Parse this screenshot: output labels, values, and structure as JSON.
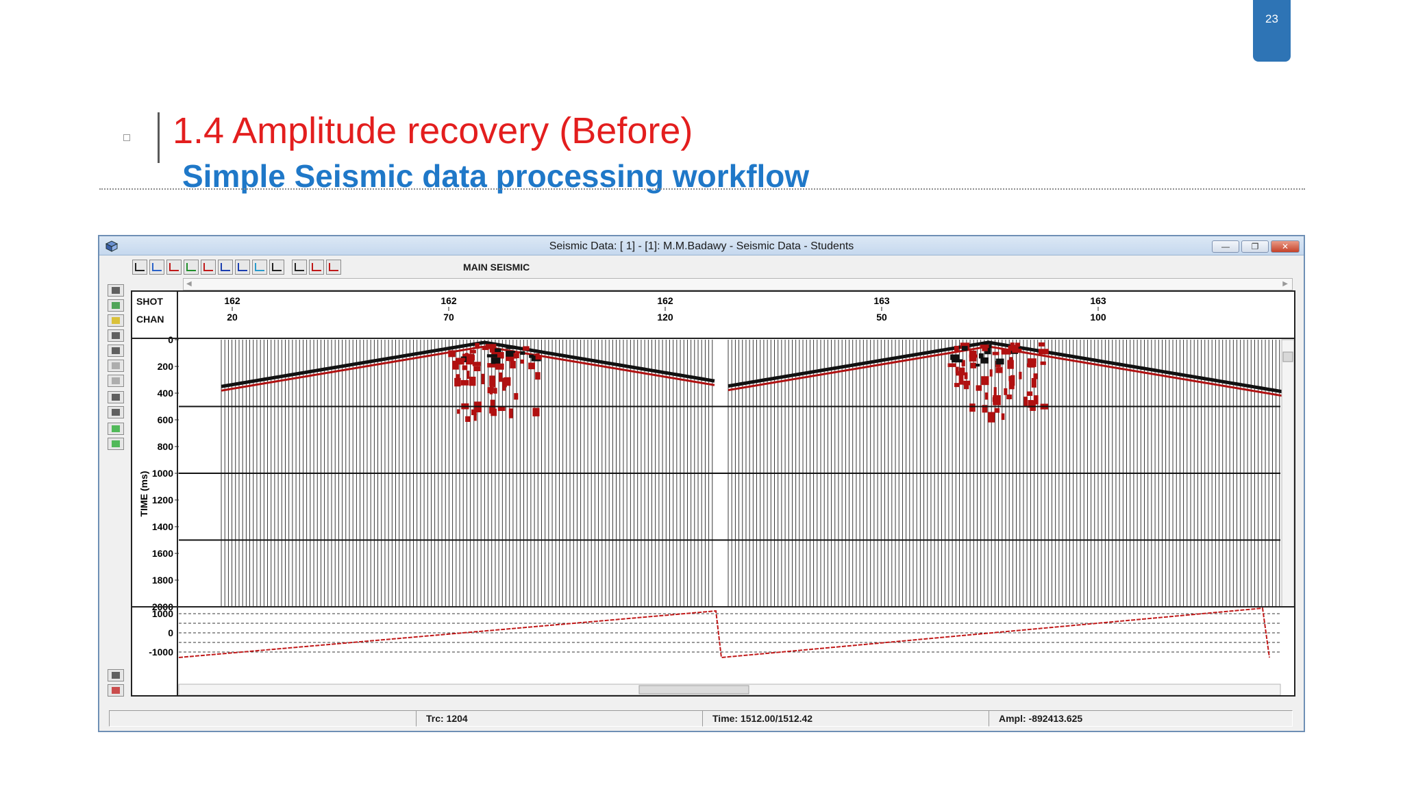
{
  "slide": {
    "page_number": "23",
    "title": "1.4 Amplitude recovery  (Before)",
    "subtitle": "Simple Seismic data processing workflow"
  },
  "window": {
    "title": "Seismic Data: [  1] - [1]: M.M.Badawy - Seismic Data - Students",
    "buttons": [
      "minimize",
      "restore",
      "close"
    ]
  },
  "toolbar": {
    "label": "MAIN SEISMIC",
    "icons": [
      "wiggle-icon",
      "trace-scale-icon",
      "amplitude-icon",
      "gain-icon",
      "filter-icon",
      "velocity-icon",
      "stack-icon",
      "spectrum-icon",
      "wave-icon",
      "migration-icon",
      "normal-icon",
      "display-icon"
    ]
  },
  "left_tools": [
    "select-header-icon",
    "pencil-icon",
    "color-palette-icon",
    "glasses-icon",
    "wiggle-display-icon",
    "variable-area-icon",
    "grid-lines-icon",
    "gain-g-icon",
    "help-query-icon",
    "r-icon",
    "s-icon",
    "pointer-icon",
    "erase-icon"
  ],
  "header": {
    "shot_label": "SHOT",
    "chan_label": "CHAN",
    "ticks": [
      {
        "shot": "162",
        "chan": "20"
      },
      {
        "shot": "162",
        "chan": "70"
      },
      {
        "shot": "162",
        "chan": "120"
      },
      {
        "shot": "163",
        "chan": "50"
      },
      {
        "shot": "163",
        "chan": "100"
      }
    ]
  },
  "time_axis": {
    "label": "TIME (ms)",
    "ticks": [
      "0",
      "200",
      "400",
      "600",
      "800",
      "1000",
      "1200",
      "1400",
      "1600",
      "1800",
      "2000"
    ]
  },
  "lower_panel": {
    "ticks": [
      "1000",
      "0",
      "-1000"
    ]
  },
  "status": {
    "trace": "Trc: 1204",
    "time": "Time: 1512.00/1512.42",
    "amplitude": "Ampl: -892413.625"
  },
  "colors": {
    "accent_blue": "#2e74b5",
    "title_red": "#e31e1e",
    "subtitle_blue": "#1f78c8",
    "seismic_fill": "#b01010"
  }
}
